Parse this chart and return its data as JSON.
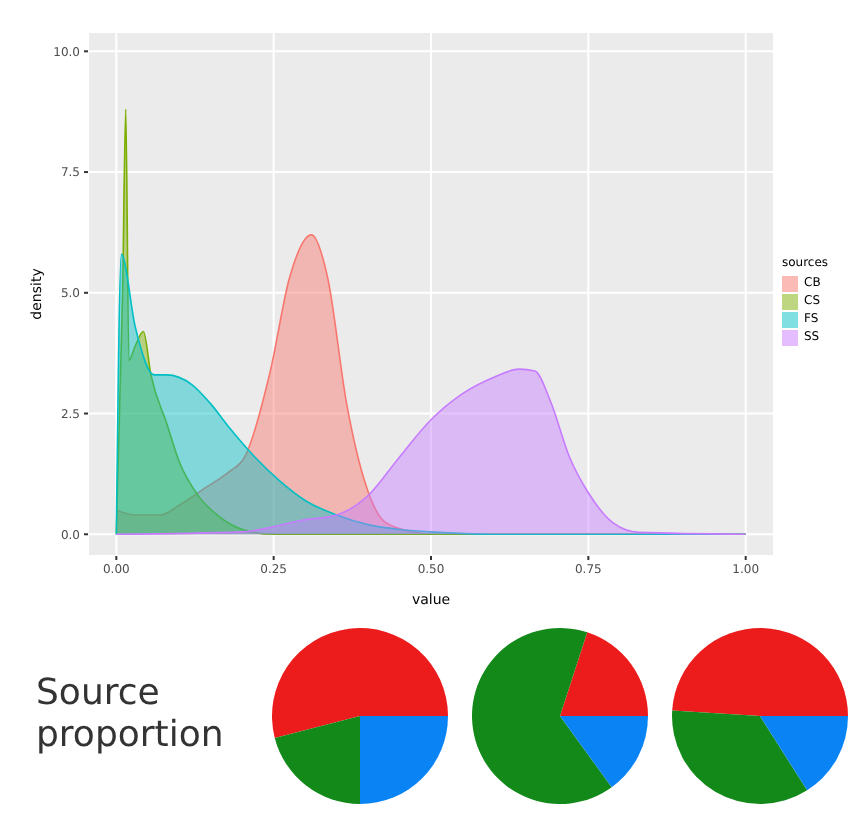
{
  "chart_data": [
    {
      "type": "area",
      "xlabel": "value",
      "ylabel": "density",
      "legend_title": "sources",
      "legend": "right",
      "grid": true,
      "xlim": [
        -0.045,
        1.045
      ],
      "ylim": [
        -0.45,
        10.4
      ],
      "xticks": [
        {
          "value": 0,
          "label": "0.00"
        },
        {
          "value": 0.25,
          "label": "0.25"
        },
        {
          "value": 0.5,
          "label": "0.50"
        },
        {
          "value": 0.75,
          "label": "0.75"
        },
        {
          "value": 1,
          "label": "1.00"
        }
      ],
      "yticks": [
        {
          "value": 0,
          "label": "0.0"
        },
        {
          "value": 2.5,
          "label": "2.5"
        },
        {
          "value": 5,
          "label": "5.0"
        },
        {
          "value": 7.5,
          "label": "7.5"
        },
        {
          "value": 10,
          "label": "10.0"
        }
      ],
      "series": [
        {
          "name": "CB",
          "color": "#f8766d",
          "x": [
            0,
            0.03,
            0.07,
            0.1,
            0.14,
            0.18,
            0.204,
            0.245,
            0.275,
            0.31,
            0.336,
            0.366,
            0.397,
            0.427,
            0.47,
            0.5,
            1
          ],
          "values": [
            0.5,
            0.4,
            0.4,
            0.6,
            0.95,
            1.3,
            1.6,
            3.4,
            5.3,
            6.2,
            5.3,
            2.7,
            1.0,
            0.25,
            0.05,
            0,
            0
          ]
        },
        {
          "name": "CS",
          "color": "#7cae00",
          "x": [
            0,
            0.01,
            0.015,
            0.02,
            0.03,
            0.043,
            0.055,
            0.08,
            0.1,
            0.13,
            0.16,
            0.2,
            0.25,
            1
          ],
          "values": [
            0,
            5,
            8.8,
            3.6,
            3.9,
            4.2,
            3.3,
            2.3,
            1.5,
            0.8,
            0.4,
            0.1,
            0,
            0
          ]
        },
        {
          "name": "FS",
          "color": "#00bfc4",
          "x": [
            0,
            0.008,
            0.03,
            0.06,
            0.08,
            0.12,
            0.15,
            0.18,
            0.22,
            0.26,
            0.3,
            0.35,
            0.4,
            0.45,
            0.5,
            0.6,
            1
          ],
          "values": [
            0,
            5.8,
            4.3,
            3.3,
            3.3,
            3.1,
            2.7,
            2.2,
            1.6,
            1.1,
            0.7,
            0.4,
            0.2,
            0.1,
            0.05,
            0,
            0
          ]
        },
        {
          "name": "SS",
          "color": "#c77cff",
          "x": [
            0,
            0.2,
            0.3,
            0.35,
            0.4,
            0.447,
            0.5,
            0.549,
            0.6,
            0.64,
            0.665,
            0.69,
            0.72,
            0.75,
            0.79,
            0.83,
            1
          ],
          "values": [
            0,
            0.05,
            0.3,
            0.4,
            0.8,
            1.55,
            2.37,
            2.9,
            3.25,
            3.42,
            3.38,
            2.75,
            1.6,
            0.86,
            0.23,
            0.04,
            0
          ]
        }
      ]
    },
    {
      "type": "pie",
      "annotations": [
        "Source proportion"
      ],
      "categories": [
        null,
        null,
        null
      ],
      "values": [
        54,
        21,
        25
      ],
      "colors": [
        "#ed1c1c",
        "#13891a",
        "#0a84f5"
      ]
    },
    {
      "type": "pie",
      "categories": [
        null,
        null,
        null
      ],
      "values": [
        20,
        65,
        15
      ],
      "colors": [
        "#ed1c1c",
        "#13891a",
        "#0a84f5"
      ]
    },
    {
      "type": "pie",
      "categories": [
        null,
        null,
        null
      ],
      "values": [
        49,
        35,
        16
      ],
      "colors": [
        "#ed1c1c",
        "#13891a",
        "#0a84f5"
      ]
    }
  ]
}
